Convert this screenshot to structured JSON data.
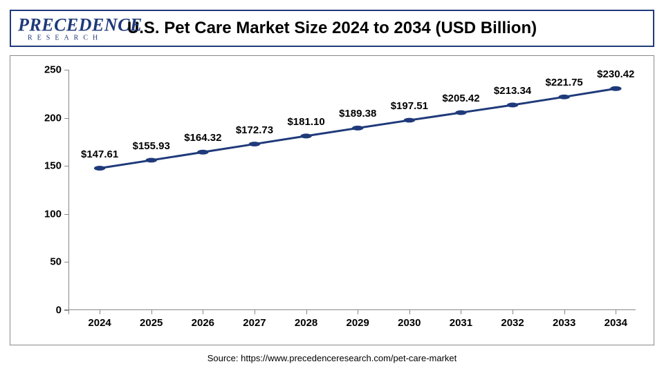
{
  "title": "U.S. Pet Care Market Size 2024 to 2034 (USD Billion)",
  "logo": {
    "main": "PRECEDENCE",
    "sub": "RESEARCH"
  },
  "source": "Source: https://www.precedenceresearch.com/pet-care-market",
  "chart": {
    "type": "line",
    "years": [
      "2024",
      "2025",
      "2026",
      "2027",
      "2028",
      "2029",
      "2030",
      "2031",
      "2032",
      "2033",
      "2034"
    ],
    "values": [
      147.61,
      155.93,
      164.32,
      172.73,
      181.1,
      189.38,
      197.51,
      205.42,
      213.34,
      221.75,
      230.42
    ],
    "labels": [
      "$147.61",
      "$155.93",
      "$164.32",
      "$172.73",
      "$181.10",
      "$189.38",
      "$197.51",
      "$205.42",
      "$213.34",
      "$221.75",
      "$230.42"
    ],
    "ylim": [
      0,
      250
    ],
    "yticks": [
      0,
      50,
      100,
      150,
      200,
      250
    ],
    "line_color": "#1f3a7a",
    "line_width": 3,
    "marker_color": "#1f3a7a",
    "marker_size": 5,
    "background_color": "#ffffff",
    "label_fontsize": 15,
    "label_fontweight": "bold",
    "axis_color": "#888888",
    "title_fontsize": 24,
    "title_color": "#000000"
  }
}
